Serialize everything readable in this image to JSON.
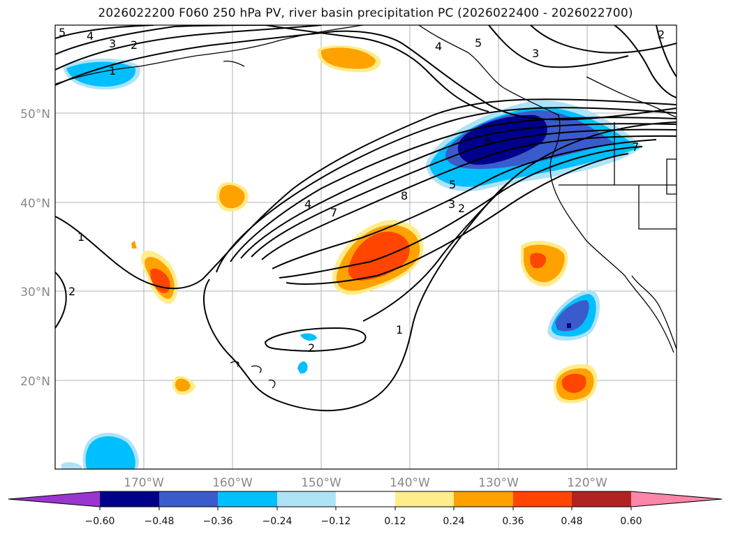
{
  "title": "2026022200 F060 250 hPa PV, river basin precipitation PC (2026022400 - 2026022700)",
  "map": {
    "lat_labels": [
      "50°N",
      "40°N",
      "30°N",
      "20°N"
    ],
    "lon_labels": [
      "170°W",
      "160°W",
      "150°W",
      "140°W",
      "130°W",
      "120°W"
    ],
    "contour_labels": [
      "5",
      "4",
      "3",
      "2",
      "1",
      "5",
      "4",
      "3",
      "2",
      "4",
      "7",
      "8",
      "6",
      "5",
      "3",
      "2",
      "1",
      "1",
      "2",
      "2",
      "7"
    ]
  },
  "colorbar": {
    "ticks": [
      "−0.60",
      "−0.48",
      "−0.36",
      "−0.24",
      "−0.12",
      "0.12",
      "0.24",
      "0.36",
      "0.48",
      "0.60"
    ],
    "colors": [
      "#9a35cf",
      "#00008b",
      "#3a5bcc",
      "#00bfff",
      "#aee3f7",
      "#ffffff",
      "#ffec8a",
      "#ffa200",
      "#ff4500",
      "#b22222",
      "#ff86aa"
    ]
  }
}
